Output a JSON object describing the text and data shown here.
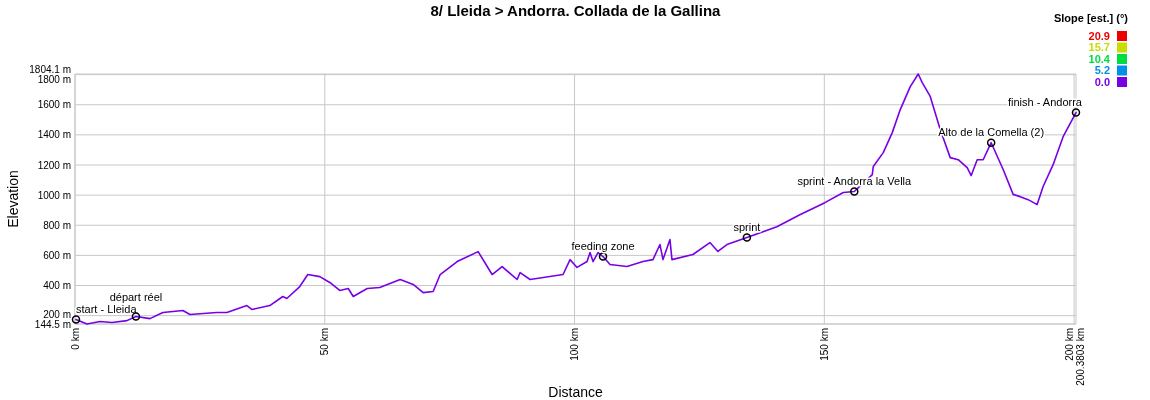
{
  "chart_data": {
    "type": "line",
    "title": "8/ Lleida > Andorra. Collada de la Gallina",
    "xlabel": "Distance",
    "ylabel": "Elevation",
    "clabel": "Slope [est.] (°)",
    "cticks": [
      {
        "value": 0,
        "label": "0.0"
      },
      5.2,
      10.4,
      15.7,
      20.9
    ],
    "xlim": [
      0,
      200.3803
    ],
    "xticks": [
      {
        "value": 0,
        "label": "0 km"
      },
      {
        "value": 50,
        "label": "50 km"
      },
      {
        "value": 100,
        "label": "100 km"
      },
      {
        "value": 150,
        "label": "150 km"
      },
      {
        "value": 200,
        "label": "200 km"
      },
      {
        "value": 200.3803,
        "label": "200.3803 km"
      }
    ],
    "ylim": [
      144.5,
      1804.1
    ],
    "yticks": [
      {
        "value": 144.5,
        "label": "144.5 m"
      },
      {
        "value": 200,
        "label": "200 m"
      },
      {
        "value": 400,
        "label": "400 m"
      },
      {
        "value": 600,
        "label": "600 m"
      },
      {
        "value": 800,
        "label": "800 m"
      },
      {
        "value": 1000,
        "label": "1000 m"
      },
      {
        "value": 1200,
        "label": "1200 m"
      },
      {
        "value": 1400,
        "label": "1400 m"
      },
      {
        "value": 1600,
        "label": "1600 m"
      },
      {
        "value": 1800,
        "label": "1800 m"
      },
      {
        "value": 1804.1,
        "label": "1804.1 m"
      }
    ],
    "grid": true,
    "series": [
      {
        "color": "#7800e6",
        "x": [
          0.2,
          2.4,
          5,
          7.4,
          10.4,
          12.2,
          15,
          17.6,
          21.6,
          23,
          28.4,
          30.4,
          34.4,
          35.4,
          39,
          41.6,
          42.4,
          45,
          46.6,
          49,
          51,
          53,
          54.7,
          55.7,
          58.5,
          61,
          65.1,
          67.7,
          69.7,
          71.7,
          73.1,
          76.5,
          80.7,
          83.5,
          85.5,
          88.5,
          89.1,
          91.1,
          97.7,
          99.1,
          100.5,
          102.5,
          103.1,
          103.7,
          104.7,
          105.7,
          107.1,
          110.5,
          113.7,
          115.7,
          117.1,
          117.7,
          119.1,
          119.5,
          123.7,
          127.1,
          128.7,
          130.5,
          134.5,
          140.5,
          145.1,
          150.1,
          153.8,
          156,
          159.6,
          159.8,
          161.8,
          163.6,
          165.2,
          167.2,
          168.8,
          169.6,
          171.2,
          173.2,
          175.2,
          176.8,
          178.6,
          179.4,
          180.6,
          181.8,
          183.4,
          185.8,
          187.8,
          189.2,
          190.8,
          192.6,
          193.8,
          195.8,
          197.8,
          200.38
        ],
        "values": [
          174,
          144.5,
          161,
          154,
          167,
          194,
          180,
          221,
          234,
          208,
          221,
          221,
          267,
          241,
          267,
          327,
          314,
          393,
          473,
          459,
          420,
          367,
          380,
          327,
          380,
          387,
          440,
          407,
          353,
          360,
          473,
          559,
          625,
          473,
          526,
          440,
          486,
          440,
          473,
          572,
          520,
          559,
          619,
          559,
          619,
          592,
          539,
          526,
          559,
          572,
          672,
          572,
          705,
          572,
          606,
          685,
          626,
          672,
          718,
          790,
          870,
          950,
          1017,
          1024,
          1136,
          1190,
          1282,
          1415,
          1568,
          1720,
          1804.1,
          1747,
          1655,
          1435,
          1249,
          1235,
          1183,
          1130,
          1235,
          1235,
          1348,
          1170,
          1005,
          990,
          970,
          937,
          1057,
          1202,
          1388,
          1548
        ]
      }
    ],
    "annotations": [
      {
        "text": "start - Lleida",
        "x": 0.2,
        "y": 174
      },
      {
        "text": "départ réel",
        "x": 12.2,
        "y": 194
      },
      {
        "text": "feeding zone",
        "x": 105.7,
        "y": 592
      },
      {
        "text": "sprint",
        "x": 134.5,
        "y": 718
      },
      {
        "text": "sprint - Andorra la Vella",
        "x": 156,
        "y": 1024
      },
      {
        "text": "Alto de la Comella (2)",
        "x": 183.4,
        "y": 1348
      },
      {
        "text": "finish - Andorra",
        "x": 200.38,
        "y": 1548
      }
    ]
  }
}
